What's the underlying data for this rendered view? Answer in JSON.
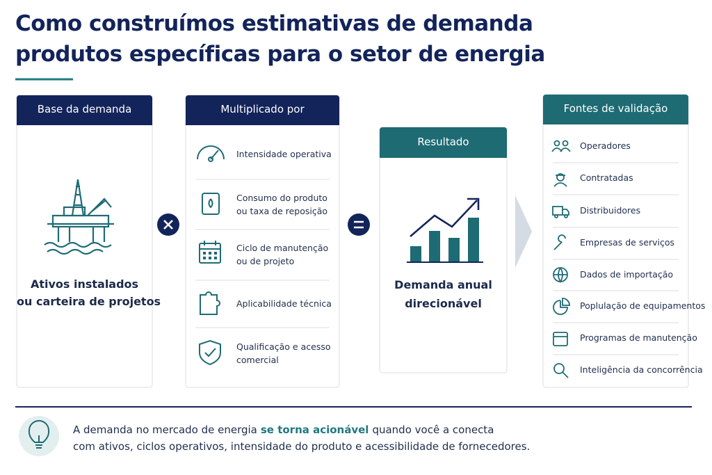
{
  "title_lines": [
    "Como construímos estimativas de demanda",
    "produtos específicas para o setor de energia"
  ],
  "base": {
    "header": "Base da demanda",
    "label_lines": [
      "Ativos instalados",
      "ou carteira de projetos"
    ]
  },
  "multiplier": {
    "header": "Multiplicado por",
    "items": [
      [
        "Intensidade operativa"
      ],
      [
        "Consumo do produto",
        "ou taxa de reposição"
      ],
      [
        "Ciclo de manutenção",
        "ou de projeto"
      ],
      [
        "Aplicabilidade técnica"
      ],
      [
        "Qualificação e acesso",
        "comercial"
      ]
    ]
  },
  "result": {
    "header": "Resultado",
    "label_lines": [
      "Demanda anual",
      "direcionável"
    ]
  },
  "validation": {
    "header": "Fontes de validação",
    "items": [
      "Operadores",
      "Contratadas",
      "Distribuidores",
      "Empresas de serviços",
      "Dados de importação",
      "Poplulação de equipamentos",
      "Programas de manutenção",
      "Inteligência da concorrência"
    ]
  },
  "footer": {
    "line1": [
      "A demanda no mercado de energia",
      "se torna acionável",
      "quando você a conecta"
    ],
    "line2": "com ativos, ciclos operativos, intensidade do produto e acessibilidade de fornecedores."
  }
}
